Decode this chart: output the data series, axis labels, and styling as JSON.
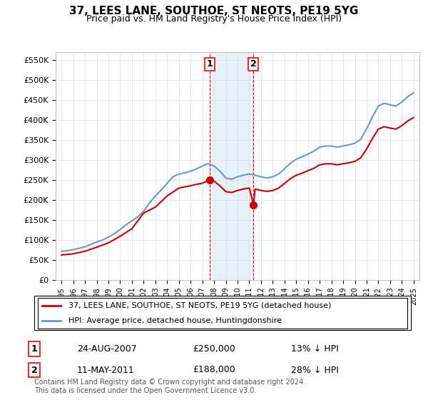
{
  "title": "37, LEES LANE, SOUTHOE, ST NEOTS, PE19 5YG",
  "subtitle": "Price paid vs. HM Land Registry's House Price Index (HPI)",
  "ylabel": "",
  "ylim": [
    0,
    570000
  ],
  "yticks": [
    0,
    50000,
    100000,
    150000,
    200000,
    250000,
    300000,
    350000,
    400000,
    450000,
    500000,
    550000
  ],
  "ytick_labels": [
    "£0",
    "£50K",
    "£100K",
    "£150K",
    "£200K",
    "£250K",
    "£300K",
    "£350K",
    "£400K",
    "£450K",
    "£500K",
    "£550K"
  ],
  "background_color": "#ffffff",
  "plot_bg_color": "#ffffff",
  "grid_color": "#dddddd",
  "sale1_date": 2007.65,
  "sale1_price": 250000,
  "sale1_label": "1",
  "sale2_date": 2011.36,
  "sale2_price": 188000,
  "sale2_label": "2",
  "shade_color": "#d0e4f7",
  "red_line_color": "#cc0000",
  "blue_line_color": "#6699cc",
  "marker_color_1": "#cc0000",
  "marker_color_2": "#cc0000",
  "legend_entry1": "37, LEES LANE, SOUTHOE, ST NEOTS, PE19 5YG (detached house)",
  "legend_entry2": "HPI: Average price, detached house, Huntingdonshire",
  "footnote": "Contains HM Land Registry data © Crown copyright and database right 2024.\nThis data is licensed under the Open Government Licence v3.0.",
  "table_row1_num": "1",
  "table_row1_date": "24-AUG-2007",
  "table_row1_price": "£250,000",
  "table_row1_hpi": "13% ↓ HPI",
  "table_row2_num": "2",
  "table_row2_date": "11-MAY-2011",
  "table_row2_price": "£188,000",
  "table_row2_hpi": "28% ↓ HPI"
}
